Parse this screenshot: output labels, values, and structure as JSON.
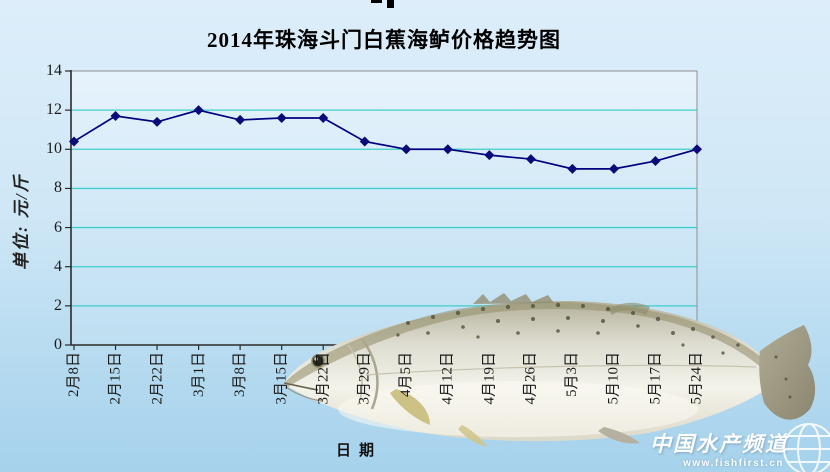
{
  "title": "2014年珠海斗门白蕉海鲈价格趋势图",
  "chart_data": {
    "type": "line",
    "title": "2014年珠海斗门白蕉海鲈价格趋势图",
    "categories": [
      "2月8日",
      "2月15日",
      "2月22日",
      "3月1日",
      "3月8日",
      "3月15日",
      "3月22日",
      "3月29日",
      "4月5日",
      "4月12日",
      "4月19日",
      "4月26日",
      "5月3日",
      "5月10日",
      "5月17日",
      "5月24日"
    ],
    "values": [
      10.4,
      11.7,
      11.4,
      12.0,
      11.5,
      11.6,
      11.6,
      10.4,
      10.0,
      10.0,
      9.7,
      9.5,
      9.0,
      9.0,
      9.4,
      10.0
    ],
    "xlabel": "日期",
    "ylabel": "单位: 元/斤",
    "ylim": [
      0,
      14
    ],
    "yticks": [
      0,
      2,
      4,
      6,
      8,
      10,
      12,
      14
    ],
    "grid": true,
    "legend": "none",
    "marker": "diamond",
    "colors": {
      "line": "#000080",
      "marker": "#0a0a78",
      "gridline": "#3ecfca",
      "plot_border": "#8f8f8f",
      "axis": "#2b2b2b",
      "plot_bg_top": "#e7f3fc",
      "plot_bg_bottom": "#bedff2"
    }
  },
  "watermark": {
    "brand": "中国水产频道",
    "site": "www.fishfirst.cn"
  }
}
